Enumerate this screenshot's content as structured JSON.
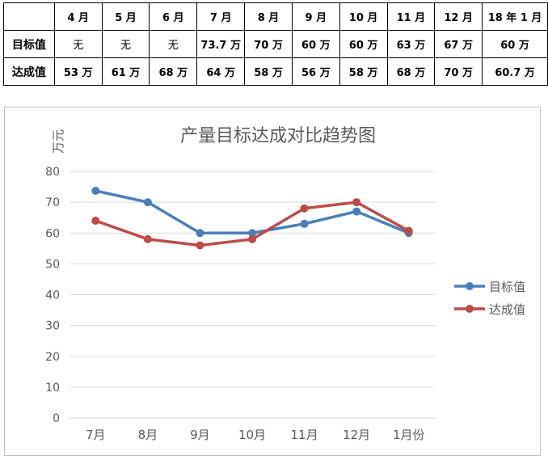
{
  "table": {
    "headers": [
      "",
      "4 月",
      "5 月",
      "6 月",
      "7 月",
      "8 月",
      "9 月",
      "10 月",
      "11 月",
      "12 月",
      "18 年 1 月"
    ],
    "rows": [
      {
        "label": "目标值",
        "cells": [
          "无",
          "无",
          "无",
          "73.7 万",
          "70 万",
          "60 万",
          "60 万",
          "63 万",
          "67 万",
          "60 万"
        ]
      },
      {
        "label": "达成值",
        "cells": [
          "53 万",
          "61 万",
          "68 万",
          "64 万",
          "58 万",
          "56 万",
          "58 万",
          "68 万",
          "70 万",
          "60.7 万"
        ]
      }
    ]
  },
  "chart_data": {
    "type": "line",
    "title": "产量目标达成对比趋势图",
    "ylabel": "万元",
    "xlabel": "",
    "categories": [
      "7月",
      "8月",
      "9月",
      "10月",
      "11月",
      "12月",
      "1月份"
    ],
    "ylim": [
      0,
      80
    ],
    "yticks": [
      "0",
      "10",
      "20",
      "30",
      "40",
      "50",
      "60",
      "70",
      "80"
    ],
    "grid": true,
    "legend": "right",
    "series": [
      {
        "name": "目标值",
        "color": "#4a7ebb",
        "values": [
          73.7,
          70,
          60,
          60,
          63,
          67,
          60
        ]
      },
      {
        "name": "达成值",
        "color": "#be4b48",
        "values": [
          64,
          58,
          56,
          58,
          68,
          70,
          60.7
        ]
      }
    ]
  }
}
